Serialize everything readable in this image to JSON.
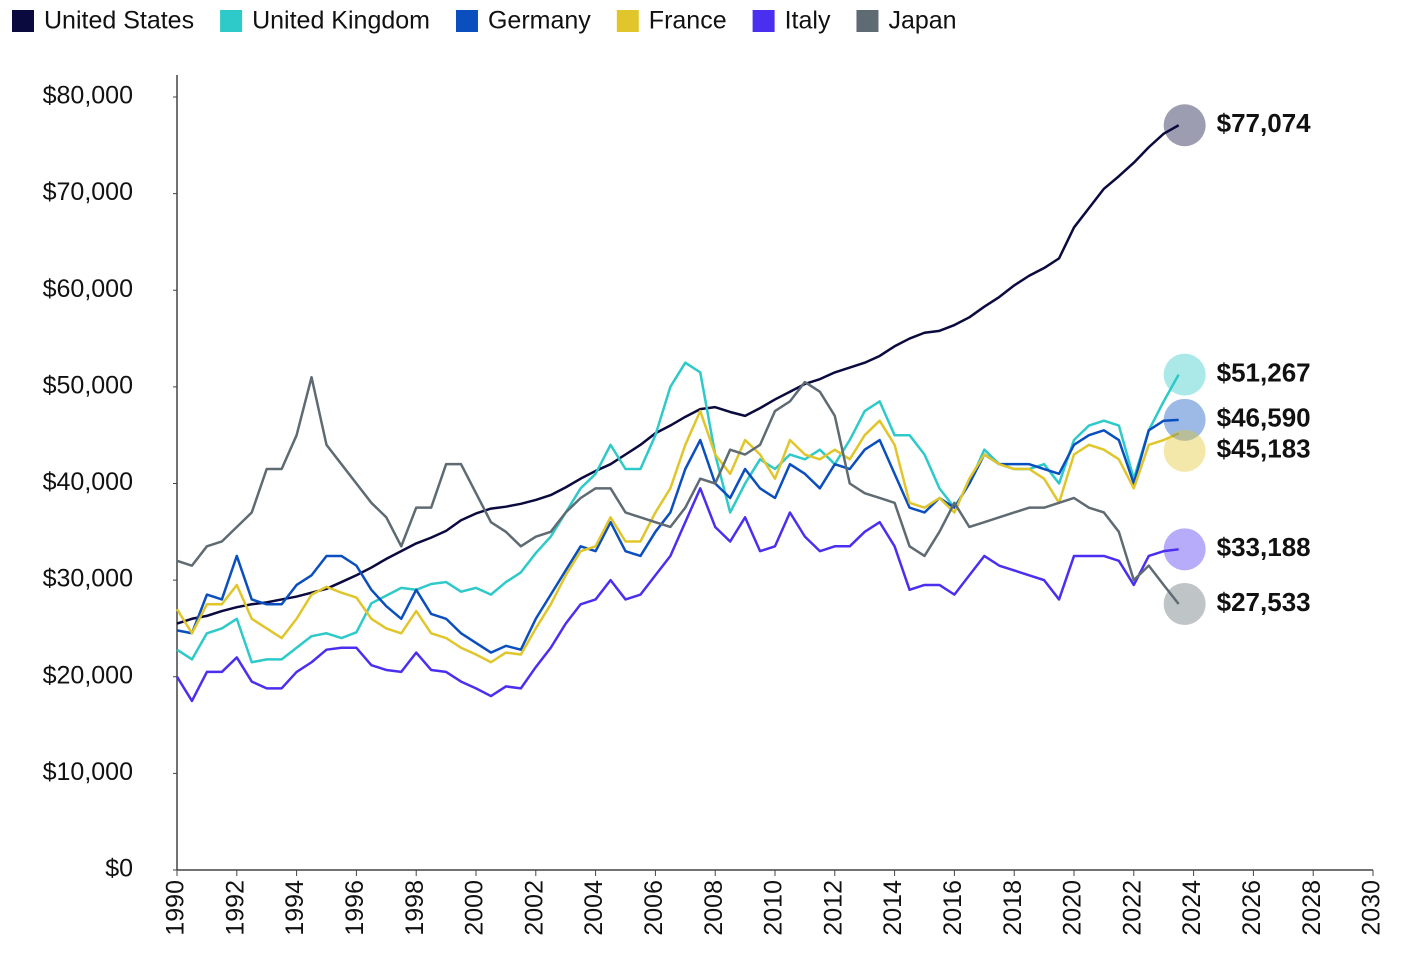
{
  "chart_data": {
    "type": "line",
    "x": [
      1990,
      1990.5,
      1991,
      1991.5,
      1992,
      1992.5,
      1993,
      1993.5,
      1994,
      1994.5,
      1995,
      1995.5,
      1996,
      1996.5,
      1997,
      1997.5,
      1998,
      1998.5,
      1999,
      1999.5,
      2000,
      2000.5,
      2001,
      2001.5,
      2002,
      2002.5,
      2003,
      2003.5,
      2004,
      2004.5,
      2005,
      2005.5,
      2006,
      2006.5,
      2007,
      2007.5,
      2008,
      2008.5,
      2009,
      2009.5,
      2010,
      2010.5,
      2011,
      2011.5,
      2012,
      2012.5,
      2013,
      2013.5,
      2014,
      2014.5,
      2015,
      2015.5,
      2016,
      2016.5,
      2017,
      2017.5,
      2018,
      2018.5,
      2019,
      2019.5,
      2020,
      2020.5,
      2021,
      2021.5,
      2022,
      2022.5,
      2023,
      2023.5
    ],
    "series": [
      {
        "name": "United States",
        "color": "#0b0a3f",
        "last_label": "$77,074",
        "values": [
          25500,
          26000,
          26300,
          26800,
          27200,
          27500,
          27700,
          28000,
          28300,
          28700,
          29100,
          29800,
          30500,
          31300,
          32200,
          33000,
          33800,
          34400,
          35100,
          36200,
          36900,
          37400,
          37600,
          37900,
          38300,
          38800,
          39600,
          40500,
          41300,
          42000,
          43000,
          44000,
          45200,
          46000,
          46900,
          47700,
          47900,
          47400,
          47000,
          47800,
          48700,
          49500,
          50300,
          50800,
          51500,
          52000,
          52500,
          53200,
          54200,
          55000,
          55600,
          55800,
          56400,
          57200,
          58300,
          59300,
          60500,
          61500,
          62300,
          63300,
          66500,
          68500,
          70500,
          71800,
          73200,
          74800,
          76200,
          77074
        ]
      },
      {
        "name": "United Kingdom",
        "color": "#2ec9c9",
        "last_label": "$51,267",
        "values": [
          22800,
          21800,
          24500,
          25000,
          26000,
          21500,
          21800,
          21800,
          23000,
          24200,
          24500,
          24000,
          24600,
          27600,
          28400,
          29200,
          29000,
          29600,
          29800,
          28800,
          29200,
          28500,
          29800,
          30800,
          32800,
          34500,
          37000,
          39500,
          41000,
          44000,
          41500,
          41500,
          45000,
          50000,
          52500,
          51500,
          43000,
          37000,
          40000,
          42500,
          41500,
          43000,
          42500,
          43500,
          42000,
          44500,
          47500,
          48500,
          45000,
          45000,
          43000,
          39500,
          37500,
          40000,
          43500,
          42000,
          41500,
          41500,
          42000,
          40000,
          44500,
          46000,
          46500,
          46000,
          40500,
          45500,
          48500,
          51267
        ]
      },
      {
        "name": "Germany",
        "color": "#0b4fbf",
        "last_label": "$46,590",
        "values": [
          24800,
          24500,
          28500,
          28000,
          32500,
          28000,
          27500,
          27500,
          29500,
          30500,
          32500,
          32500,
          31500,
          29000,
          27300,
          26000,
          29000,
          26500,
          26000,
          24500,
          23500,
          22500,
          23200,
          22800,
          26000,
          28500,
          31000,
          33500,
          33000,
          36000,
          33000,
          32500,
          35000,
          37000,
          41500,
          44500,
          40000,
          38500,
          41500,
          39500,
          38500,
          42000,
          41000,
          39500,
          42000,
          41500,
          43500,
          44500,
          41000,
          37500,
          37000,
          38500,
          37500,
          40000,
          43000,
          42000,
          42000,
          42000,
          41500,
          41000,
          44000,
          45000,
          45500,
          44500,
          40000,
          45500,
          46500,
          46590
        ]
      },
      {
        "name": "France",
        "color": "#e0c62a",
        "last_label": "$45,183",
        "values": [
          27000,
          24500,
          27500,
          27500,
          29500,
          26000,
          25000,
          24000,
          26000,
          28500,
          29300,
          28700,
          28200,
          26000,
          25000,
          24500,
          26800,
          24500,
          24000,
          23000,
          22300,
          21500,
          22500,
          22300,
          25000,
          27500,
          30500,
          33000,
          33500,
          36500,
          34000,
          34000,
          37000,
          39500,
          44000,
          47500,
          43000,
          41000,
          44500,
          43000,
          40500,
          44500,
          43000,
          42500,
          43500,
          42500,
          45000,
          46500,
          44000,
          38000,
          37500,
          38500,
          37000,
          40500,
          43000,
          42000,
          41500,
          41500,
          40500,
          38000,
          43000,
          44000,
          43500,
          42500,
          39500,
          44000,
          44500,
          45183
        ]
      },
      {
        "name": "Italy",
        "color": "#4b2ff0",
        "last_label": "$33,188",
        "values": [
          20000,
          17500,
          20500,
          20500,
          22000,
          19500,
          18800,
          18800,
          20500,
          21500,
          22800,
          23000,
          23000,
          21200,
          20700,
          20500,
          22500,
          20700,
          20500,
          19500,
          18800,
          18000,
          19000,
          18800,
          21000,
          23000,
          25500,
          27500,
          28000,
          30000,
          28000,
          28500,
          30500,
          32500,
          36000,
          39500,
          35500,
          34000,
          36500,
          33000,
          33500,
          37000,
          34500,
          33000,
          33500,
          33500,
          35000,
          36000,
          33500,
          29000,
          29500,
          29500,
          28500,
          30500,
          32500,
          31500,
          31000,
          30500,
          30000,
          28000,
          32500,
          32500,
          32500,
          32000,
          29500,
          32500,
          33000,
          33188
        ]
      },
      {
        "name": "Japan",
        "color": "#5f6b73",
        "last_label": "$27,533",
        "values": [
          32000,
          31500,
          33500,
          34000,
          35500,
          37000,
          41500,
          41500,
          45000,
          51000,
          44000,
          42000,
          40000,
          38000,
          36500,
          33500,
          37500,
          37500,
          42000,
          42000,
          39000,
          36000,
          35000,
          33500,
          34500,
          35000,
          37000,
          38500,
          39500,
          39500,
          37000,
          36500,
          36000,
          35500,
          37500,
          40500,
          40000,
          43500,
          43000,
          44000,
          47500,
          48500,
          50500,
          49500,
          47000,
          40000,
          39000,
          38500,
          38000,
          33500,
          32500,
          35000,
          38000,
          35500,
          36000,
          36500,
          37000,
          37500,
          37500,
          38000,
          38500,
          37500,
          37000,
          35000,
          30000,
          31500,
          29500,
          27533
        ]
      }
    ],
    "xlim": [
      1990,
      2030
    ],
    "xticks": [
      1990,
      1992,
      1994,
      1996,
      1998,
      2000,
      2002,
      2004,
      2006,
      2008,
      2010,
      2012,
      2014,
      2016,
      2018,
      2020,
      2022,
      2024,
      2026,
      2028,
      2030
    ],
    "ylim": [
      0,
      80000
    ],
    "yticks": [
      {
        "value": 0,
        "label": "$0"
      },
      {
        "value": 10000,
        "label": "$10,000"
      },
      {
        "value": 20000,
        "label": "$20,000"
      },
      {
        "value": 30000,
        "label": "$30,000"
      },
      {
        "value": 40000,
        "label": "$40,000"
      },
      {
        "value": 50000,
        "label": "$50,000"
      },
      {
        "value": 60000,
        "label": "$60,000"
      },
      {
        "value": 70000,
        "label": "$70,000"
      },
      {
        "value": 80000,
        "label": "$80,000"
      }
    ],
    "grid": false,
    "legend": "top-left"
  }
}
